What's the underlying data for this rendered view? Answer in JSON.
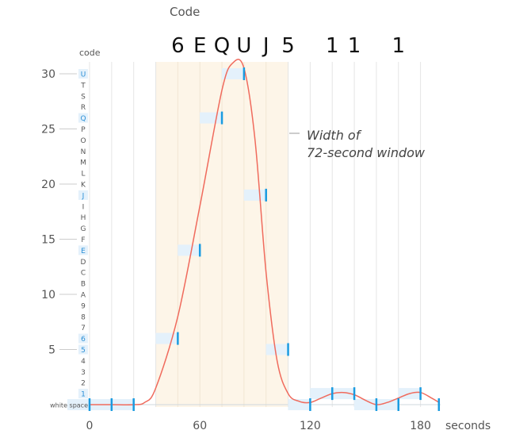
{
  "chart_data": {
    "type": "line",
    "top_header": "Code",
    "top_code_chars": [
      "6",
      "E",
      "Q",
      "U",
      "J",
      "5",
      "",
      "1",
      "1",
      "",
      "1"
    ],
    "code_axis_label": "code",
    "code_axis_ticks": [
      "white space",
      "1",
      "2",
      "3",
      "4",
      "5",
      "6",
      "7",
      "8",
      "9",
      "A",
      "B",
      "C",
      "D",
      "E",
      "F",
      "G",
      "H",
      "I",
      "J",
      "K",
      "L",
      "M",
      "N",
      "O",
      "P",
      "Q",
      "R",
      "S",
      "T",
      "U"
    ],
    "highlighted_codes": [
      "1",
      "5",
      "6",
      "E",
      "J",
      "Q",
      "U"
    ],
    "xlabel": "seconds",
    "x_ticks": [
      0,
      60,
      120,
      180
    ],
    "y_ticks": [
      5,
      10,
      15,
      20,
      25,
      30
    ],
    "xlim": [
      0,
      190
    ],
    "ylim": [
      0,
      31
    ],
    "window": {
      "start": 36,
      "end": 108,
      "label_line1": "Width of",
      "label_line2": "72-second window"
    },
    "window_subdivisions": [
      48,
      60,
      72,
      84,
      96
    ],
    "curve": {
      "name": "",
      "color": "#f06b5d",
      "x": [
        0,
        12,
        24,
        30,
        36,
        48,
        60,
        72,
        78,
        84,
        90,
        96,
        102,
        108,
        114,
        120,
        126,
        132,
        138,
        144,
        150,
        156,
        162,
        168,
        174,
        180,
        186,
        190
      ],
      "y": [
        0,
        0,
        0,
        0.2,
        1.5,
        8,
        18,
        28.5,
        31,
        30.5,
        24,
        12,
        4,
        1,
        0.3,
        0.2,
        0.6,
        1,
        1.1,
        0.9,
        0.4,
        0,
        0.2,
        0.6,
        1,
        1.1,
        0.6,
        0.2
      ]
    },
    "samples": [
      {
        "t": 0,
        "value": 0
      },
      {
        "t": 12,
        "value": 0
      },
      {
        "t": 24,
        "value": 0
      },
      {
        "t": 48,
        "value": 6
      },
      {
        "t": 60,
        "value": 14
      },
      {
        "t": 72,
        "value": 26
      },
      {
        "t": 84,
        "value": 30
      },
      {
        "t": 96,
        "value": 19
      },
      {
        "t": 108,
        "value": 5
      },
      {
        "t": 120,
        "value": 0
      },
      {
        "t": 132,
        "value": 1
      },
      {
        "t": 144,
        "value": 1
      },
      {
        "t": 156,
        "value": 0
      },
      {
        "t": 168,
        "value": 0
      },
      {
        "t": 180,
        "value": 1
      },
      {
        "t": 190,
        "value": 0
      }
    ],
    "colors": {
      "sample_marker": "#1a9be0",
      "sample_box": "#e4f1fb",
      "window_fill": "#fdf5e8",
      "grid": "#e6e6e6"
    },
    "grid": true,
    "legend": "none"
  }
}
